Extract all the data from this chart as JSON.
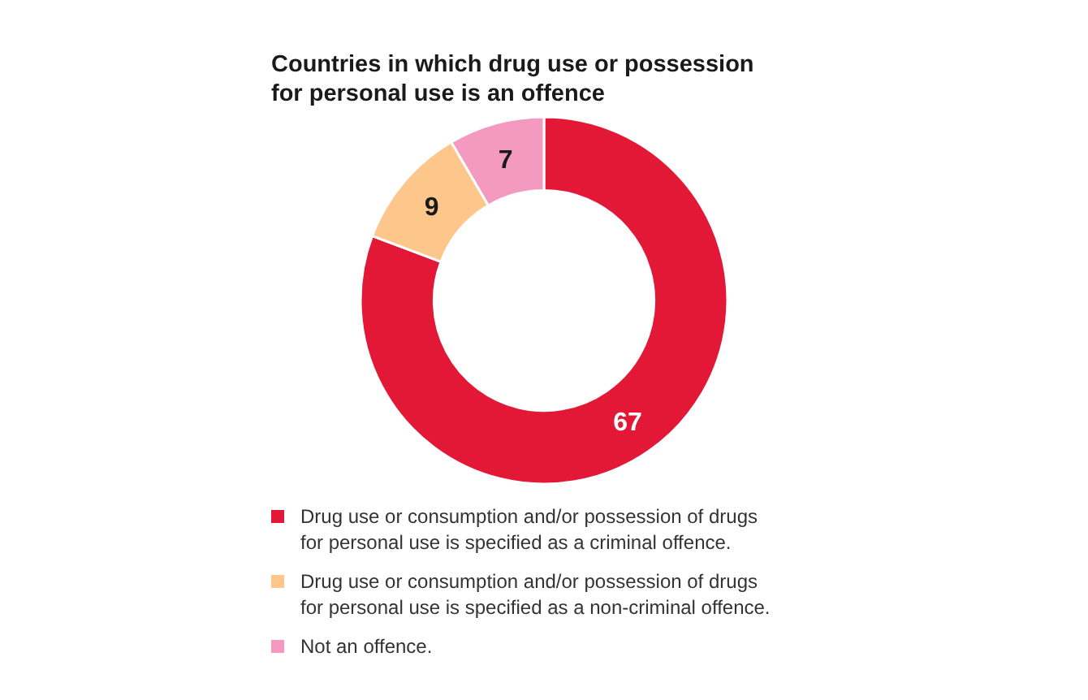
{
  "chart_data": {
    "type": "donut",
    "title": "Countries in which drug use or possession for personal use is an offence",
    "categories": [
      "Drug use or consumption and/or possession of drugs for personal use is specified as a criminal offence.",
      "Drug use or consumption and/or possession of drugs for personal use is specified as a non-criminal offence.",
      "Not an offence."
    ],
    "values": [
      67,
      9,
      7
    ],
    "colors": [
      "#e31837",
      "#fdc68a",
      "#f49ac1"
    ],
    "data_labels": true,
    "legend": "bottom"
  }
}
